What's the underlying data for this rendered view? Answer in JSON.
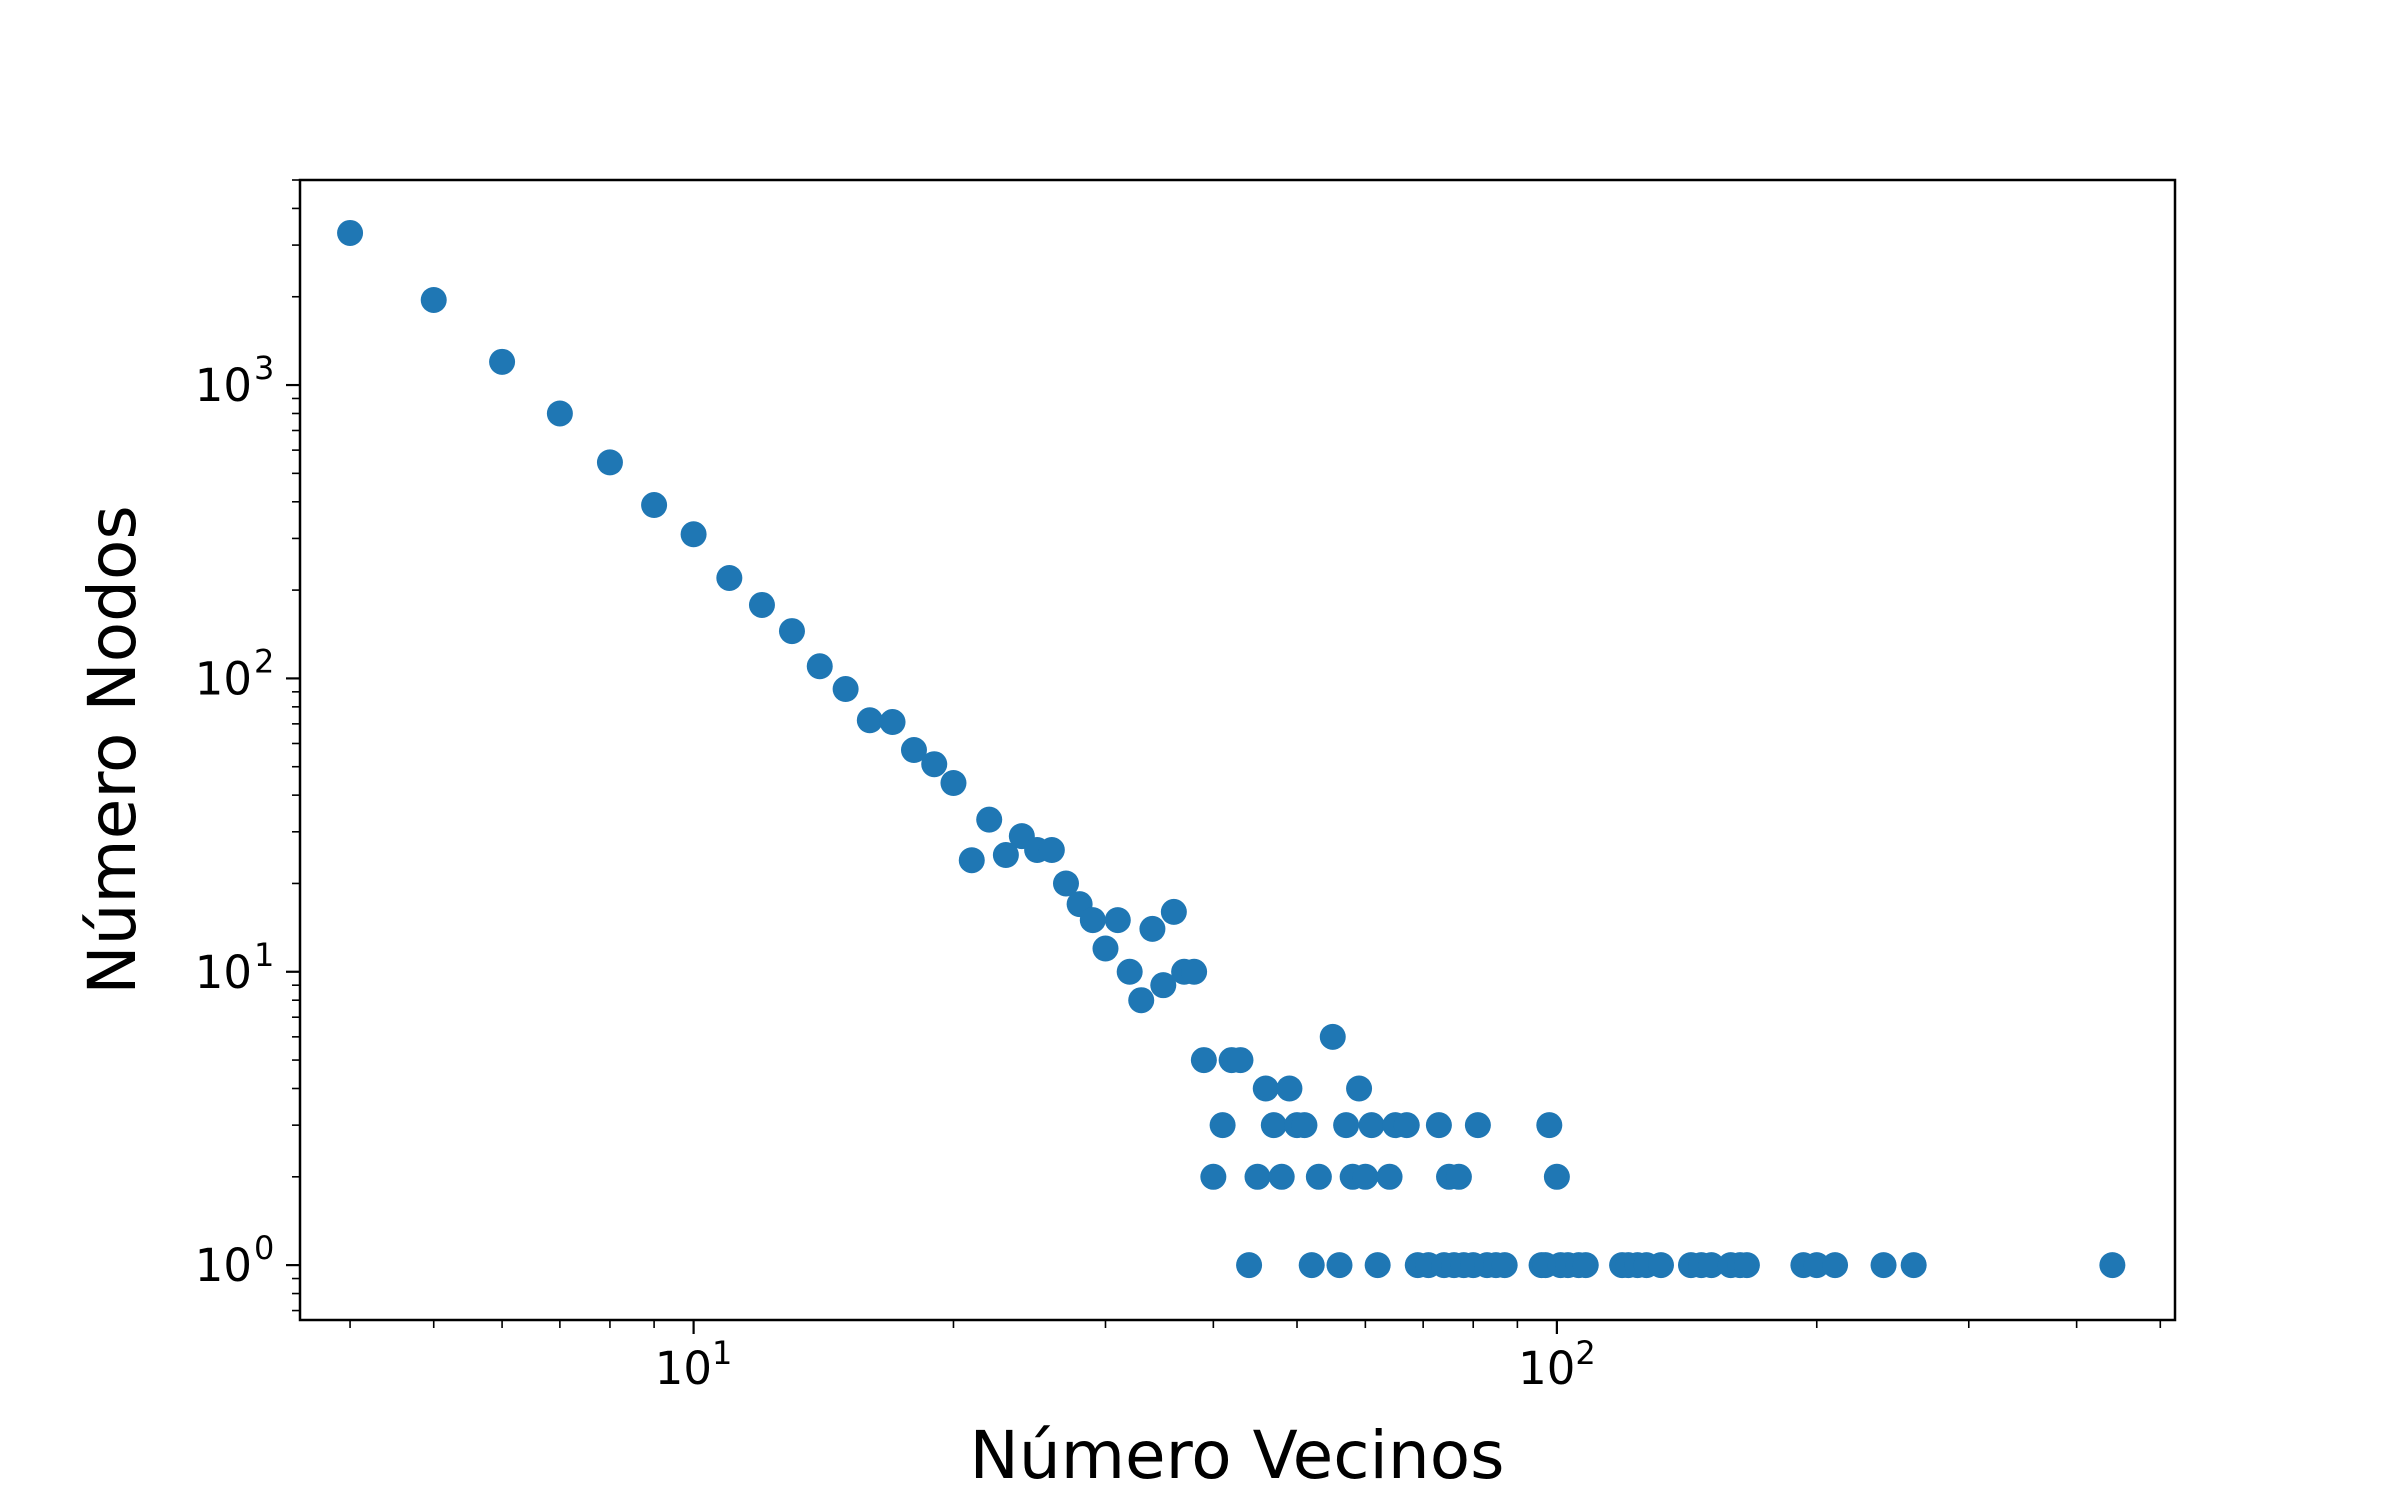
{
  "chart_data": {
    "type": "scatter",
    "title": "",
    "xlabel": "Número Vecinos",
    "ylabel": "Número Nodos",
    "xscale": "log",
    "yscale": "log",
    "xlim": [
      3.5,
      520
    ],
    "ylim": [
      0.65,
      5000
    ],
    "grid": false,
    "legend": "none",
    "marker_color": "#1f77b4",
    "x_major_ticks": [
      {
        "value": 10,
        "base": "10",
        "exp": "1"
      },
      {
        "value": 100,
        "base": "10",
        "exp": "2"
      }
    ],
    "y_major_ticks": [
      {
        "value": 1,
        "base": "10",
        "exp": "0"
      },
      {
        "value": 10,
        "base": "10",
        "exp": "1"
      },
      {
        "value": 100,
        "base": "10",
        "exp": "2"
      },
      {
        "value": 1000,
        "base": "10",
        "exp": "3"
      }
    ],
    "series": [
      {
        "points": [
          [
            4,
            3300
          ],
          [
            5,
            1950
          ],
          [
            6,
            1200
          ],
          [
            7,
            800
          ],
          [
            8,
            545
          ],
          [
            9,
            390
          ],
          [
            10,
            310
          ],
          [
            11,
            220
          ],
          [
            12,
            178
          ],
          [
            13,
            145
          ],
          [
            14,
            110
          ],
          [
            15,
            92
          ],
          [
            16,
            72
          ],
          [
            17,
            71
          ],
          [
            18,
            57
          ],
          [
            19,
            51
          ],
          [
            20,
            44
          ],
          [
            21,
            24
          ],
          [
            22,
            33
          ],
          [
            23,
            25
          ],
          [
            24,
            29
          ],
          [
            25,
            26
          ],
          [
            26,
            26
          ],
          [
            27,
            20
          ],
          [
            28,
            17
          ],
          [
            29,
            15
          ],
          [
            30,
            12
          ],
          [
            31,
            15
          ],
          [
            32,
            10
          ],
          [
            33,
            8
          ],
          [
            34,
            14
          ],
          [
            35,
            9
          ],
          [
            36,
            16
          ],
          [
            37,
            10
          ],
          [
            38,
            10
          ],
          [
            39,
            5
          ],
          [
            40,
            2
          ],
          [
            41,
            3
          ],
          [
            42,
            5
          ],
          [
            43,
            5
          ],
          [
            44,
            1
          ],
          [
            45,
            2
          ],
          [
            46,
            4
          ],
          [
            47,
            3
          ],
          [
            48,
            2
          ],
          [
            49,
            4
          ],
          [
            50,
            3
          ],
          [
            51,
            3
          ],
          [
            52,
            1
          ],
          [
            53,
            2
          ],
          [
            55,
            6
          ],
          [
            56,
            1
          ],
          [
            57,
            3
          ],
          [
            58,
            2
          ],
          [
            59,
            4
          ],
          [
            60,
            2
          ],
          [
            61,
            3
          ],
          [
            62,
            1
          ],
          [
            64,
            2
          ],
          [
            65,
            3
          ],
          [
            67,
            3
          ],
          [
            69,
            1
          ],
          [
            71,
            1
          ],
          [
            73,
            3
          ],
          [
            74,
            1
          ],
          [
            75,
            2
          ],
          [
            76,
            1
          ],
          [
            77,
            2
          ],
          [
            78,
            1
          ],
          [
            80,
            1
          ],
          [
            81,
            3
          ],
          [
            83,
            1
          ],
          [
            85,
            1
          ],
          [
            87,
            1
          ],
          [
            96,
            1
          ],
          [
            97,
            1
          ],
          [
            98,
            3
          ],
          [
            100,
            2
          ],
          [
            101,
            1
          ],
          [
            103,
            1
          ],
          [
            106,
            1
          ],
          [
            108,
            1
          ],
          [
            119,
            1
          ],
          [
            121,
            1
          ],
          [
            124,
            1
          ],
          [
            127,
            1
          ],
          [
            132,
            1
          ],
          [
            143,
            1
          ],
          [
            147,
            1
          ],
          [
            151,
            1
          ],
          [
            159,
            1
          ],
          [
            163,
            1
          ],
          [
            166,
            1
          ],
          [
            193,
            1
          ],
          [
            200,
            1
          ],
          [
            210,
            1
          ],
          [
            239,
            1
          ],
          [
            259,
            1
          ],
          [
            440,
            1
          ]
        ]
      }
    ]
  }
}
